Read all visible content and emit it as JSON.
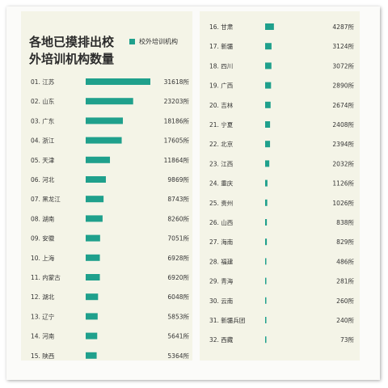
{
  "legend": {
    "label": "校外培训机构",
    "color": "#1fa08c"
  },
  "title": "各地已摸排出校外培训机构数量",
  "chart_data": {
    "type": "bar",
    "orientation": "horizontal",
    "title": "各地已摸排出校外培训机构数量",
    "series": [
      {
        "name": "校外培训机构"
      }
    ],
    "value_suffix": "所",
    "color": "#1fa08c",
    "rows": [
      {
        "rank": "01.",
        "region": "江苏",
        "value": 31618
      },
      {
        "rank": "02.",
        "region": "山东",
        "value": 23203
      },
      {
        "rank": "03.",
        "region": "广东",
        "value": 18186
      },
      {
        "rank": "04.",
        "region": "浙江",
        "value": 17605
      },
      {
        "rank": "05.",
        "region": "天津",
        "value": 11864
      },
      {
        "rank": "06.",
        "region": "河北",
        "value": 9869
      },
      {
        "rank": "07.",
        "region": "黑龙江",
        "value": 8743
      },
      {
        "rank": "08.",
        "region": "湖南",
        "value": 8260
      },
      {
        "rank": "09.",
        "region": "安徽",
        "value": 7051
      },
      {
        "rank": "10.",
        "region": "上海",
        "value": 6928
      },
      {
        "rank": "11.",
        "region": "内蒙古",
        "value": 6920
      },
      {
        "rank": "12.",
        "region": "湖北",
        "value": 6048
      },
      {
        "rank": "13.",
        "region": "辽宁",
        "value": 5853
      },
      {
        "rank": "14.",
        "region": "河南",
        "value": 5641
      },
      {
        "rank": "15.",
        "region": "陕西",
        "value": 5364
      },
      {
        "rank": "16.",
        "region": "甘肃",
        "value": 4287
      },
      {
        "rank": "17.",
        "region": "新疆",
        "value": 3124
      },
      {
        "rank": "18.",
        "region": "四川",
        "value": 3072
      },
      {
        "rank": "19.",
        "region": "广西",
        "value": 2890
      },
      {
        "rank": "20.",
        "region": "吉林",
        "value": 2674
      },
      {
        "rank": "21.",
        "region": "宁夏",
        "value": 2408
      },
      {
        "rank": "22.",
        "region": "北京",
        "value": 2394
      },
      {
        "rank": "23.",
        "region": "江西",
        "value": 2032
      },
      {
        "rank": "24.",
        "region": "重庆",
        "value": 1126
      },
      {
        "rank": "25.",
        "region": "贵州",
        "value": 1026
      },
      {
        "rank": "26.",
        "region": "山西",
        "value": 838
      },
      {
        "rank": "27.",
        "region": "海南",
        "value": 829
      },
      {
        "rank": "28.",
        "region": "福建",
        "value": 486
      },
      {
        "rank": "29.",
        "region": "青海",
        "value": 281
      },
      {
        "rank": "30.",
        "region": "云南",
        "value": 260
      },
      {
        "rank": "31.",
        "region": "新疆兵团",
        "value": 240
      },
      {
        "rank": "32.",
        "region": "西藏",
        "value": 73
      }
    ]
  }
}
